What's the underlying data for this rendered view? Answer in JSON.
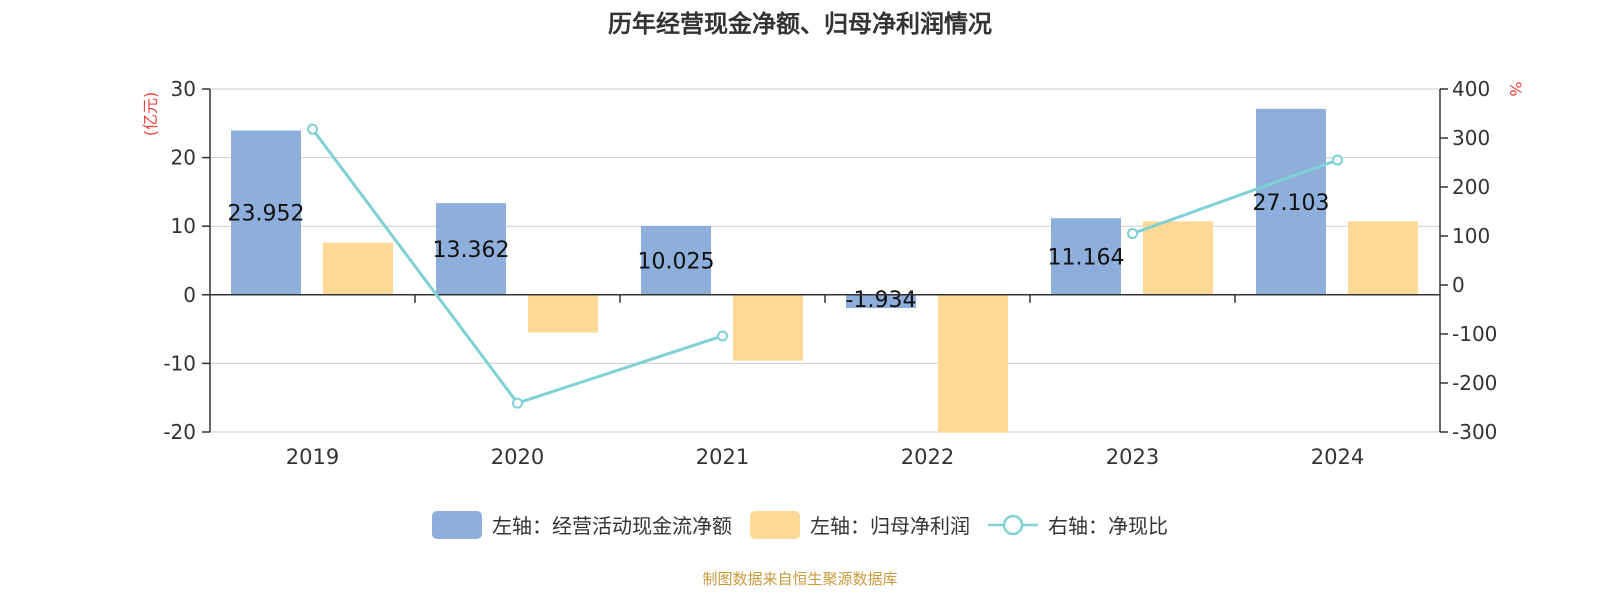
{
  "title": "历年经营现金净额、归母净利润情况",
  "source": "制图数据来自恒生聚源数据库",
  "colors": {
    "cash": "#8eaedb",
    "profit": "#fed897",
    "ratio": "#7fd1d6",
    "unit": "#e8433e"
  },
  "legend": {
    "cash": "左轴：经营活动现金流净额",
    "profit": "左轴：归母净利润",
    "ratio": "右轴：净现比"
  },
  "chart_data": {
    "type": "bar",
    "categories": [
      "2019",
      "2020",
      "2021",
      "2022",
      "2023",
      "2024"
    ],
    "series": [
      {
        "name": "左轴：经营活动现金流净额",
        "axis": "left",
        "values": [
          23.952,
          13.362,
          10.025,
          -1.934,
          11.164,
          27.103
        ],
        "data_labels": [
          "23.952",
          "13.362",
          "10.025",
          "-1.934",
          "11.164",
          "27.103"
        ]
      },
      {
        "name": "左轴：归母净利润",
        "axis": "left",
        "values": [
          7.6,
          -5.5,
          -9.6,
          -20.1,
          10.7,
          10.7
        ]
      },
      {
        "name": "右轴：净现比",
        "axis": "right",
        "type": "line",
        "values": [
          318,
          -241,
          -104,
          null,
          105,
          255
        ]
      }
    ],
    "y_left": {
      "unit": "(亿元)",
      "ticks": [
        "30",
        "20",
        "10",
        "0",
        "-10",
        "-20"
      ],
      "range": [
        -20,
        30
      ]
    },
    "y_right": {
      "unit": "%",
      "ticks": [
        "400",
        "300",
        "200",
        "100",
        "0",
        "-100",
        "-200",
        "-300"
      ],
      "range": [
        -300,
        400
      ]
    },
    "grid": true,
    "legend_position": "bottom"
  }
}
